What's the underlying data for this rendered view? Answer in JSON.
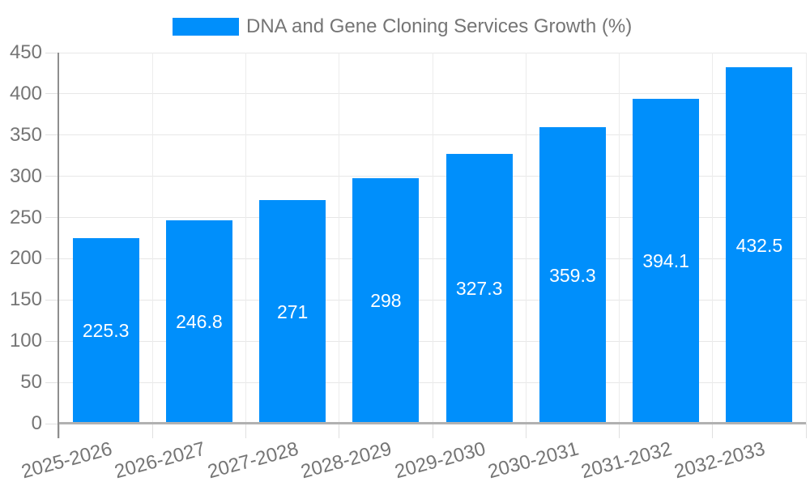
{
  "legend": {
    "label": "DNA and Gene Cloning Services Growth (%)"
  },
  "colors": {
    "bar": "#008FFB",
    "axis_text": "#757575",
    "bar_label_text": "#ffffff",
    "grid_line": "#e7e7e7",
    "y_axis_line": "#8e8e8e",
    "x_axis_line": "#b1b1b1",
    "background": "#ffffff"
  },
  "chart_data": {
    "type": "bar",
    "title": "DNA and Gene Cloning Services Growth (%)",
    "xlabel": "",
    "ylabel": "",
    "categories": [
      "2025-2026",
      "2026-2027",
      "2027-2028",
      "2028-2029",
      "2029-2030",
      "2030-2031",
      "2031-2032",
      "2032-2033"
    ],
    "series": [
      {
        "name": "DNA and Gene Cloning Services Growth (%)",
        "values": [
          225.3,
          246.8,
          271,
          298,
          327.3,
          359.3,
          394.1,
          432.5
        ]
      }
    ],
    "value_labels": [
      "225.3",
      "246.8",
      "271",
      "298",
      "327.3",
      "359.3",
      "394.1",
      "432.5"
    ],
    "ylim": [
      0,
      450
    ],
    "ytick_step": 50,
    "yticks": [
      "0",
      "50",
      "100",
      "150",
      "200",
      "250",
      "300",
      "350",
      "400",
      "450"
    ],
    "grid": "on",
    "legend_position": "top-center",
    "x_label_rotation_deg": -15
  }
}
